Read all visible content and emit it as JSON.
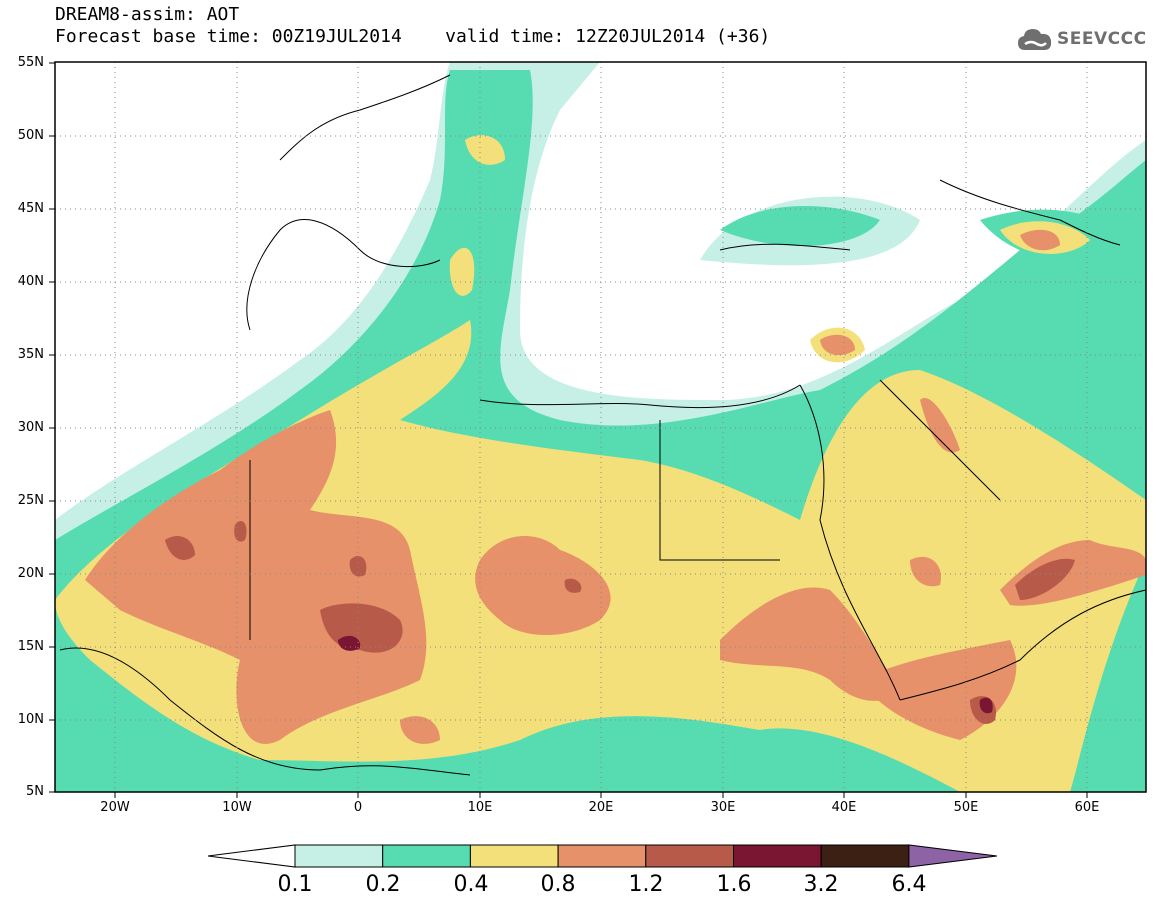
{
  "title": {
    "line1": "DREAM8-assim: AOT",
    "line2": "Forecast base time: 00Z19JUL2014    valid time: 12Z20JUL2014 (+36)"
  },
  "logo": {
    "text": "SEEVCCC",
    "icon": "cloud-icon"
  },
  "map": {
    "lat_labels": [
      "55N",
      "50N",
      "45N",
      "40N",
      "35N",
      "30N",
      "25N",
      "20N",
      "15N",
      "10N",
      "5N"
    ],
    "lon_labels": [
      "20W",
      "10W",
      "0",
      "10E",
      "20E",
      "30E",
      "40E",
      "50E",
      "60E"
    ],
    "gridlines": "dotted",
    "variable": "Aerosol optical thickness"
  },
  "colorbar": {
    "labels": [
      "0.1",
      "0.2",
      "0.4",
      "0.8",
      "1.2",
      "1.6",
      "3.2",
      "6.4"
    ],
    "colors": [
      "#ffffff",
      "#c6f0e6",
      "#56dcb0",
      "#f4e07a",
      "#e6916a",
      "#b85a4a",
      "#7a1532",
      "#3c2014",
      "#8d63a6"
    ]
  }
}
